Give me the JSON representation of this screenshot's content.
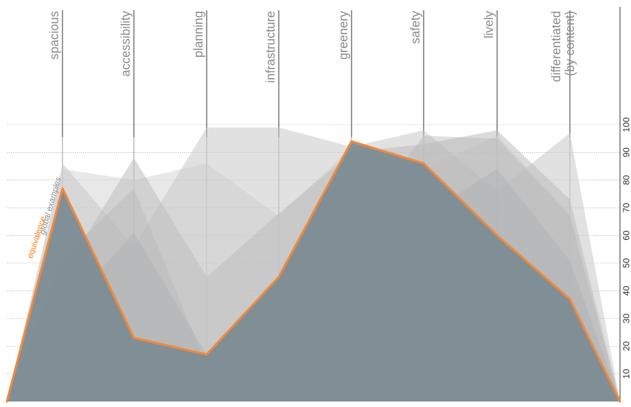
{
  "chart_data": {
    "type": "area",
    "categories": [
      "",
      "spacious",
      "accessibility",
      "planning",
      "infrastructure",
      "greenery",
      "safety",
      "lively",
      "differentiated\n(by content)",
      ""
    ],
    "yTicks": [
      10,
      20,
      30,
      40,
      50,
      60,
      70,
      80,
      90,
      100
    ],
    "ylim": [
      0,
      100
    ],
    "labels": {
      "equivalence": "equivalence",
      "global_examples": "global examples"
    },
    "series": [
      {
        "name": "global examples",
        "color": "#d5d5d5",
        "opacity": 0.55,
        "values": [
          0,
          84,
          80,
          86,
          67,
          92,
          84,
          96,
          68,
          0
        ]
      },
      {
        "color": "#c8c8c8",
        "opacity": 0.55,
        "values": [
          0,
          86,
          56,
          99,
          99,
          92,
          98,
          76,
          97,
          0
        ]
      },
      {
        "color": "#bdbdbd",
        "opacity": 0.55,
        "values": [
          0,
          46,
          88,
          45,
          68,
          90,
          93,
          98,
          73,
          0
        ]
      },
      {
        "color": "#b7b7b7",
        "opacity": 0.45,
        "values": [
          0,
          52,
          77,
          13,
          14,
          61,
          96,
          95,
          67,
          0
        ]
      },
      {
        "color": "#aeb0b2",
        "opacity": 0.45,
        "values": [
          0,
          32,
          61,
          17,
          14,
          61,
          67,
          84,
          51,
          0
        ]
      },
      {
        "name": "equivalence",
        "color": "#7c8b93",
        "lineColor": "#f1893a",
        "values": [
          0,
          77,
          23,
          17,
          45,
          94,
          86,
          60,
          37,
          0
        ]
      }
    ]
  }
}
